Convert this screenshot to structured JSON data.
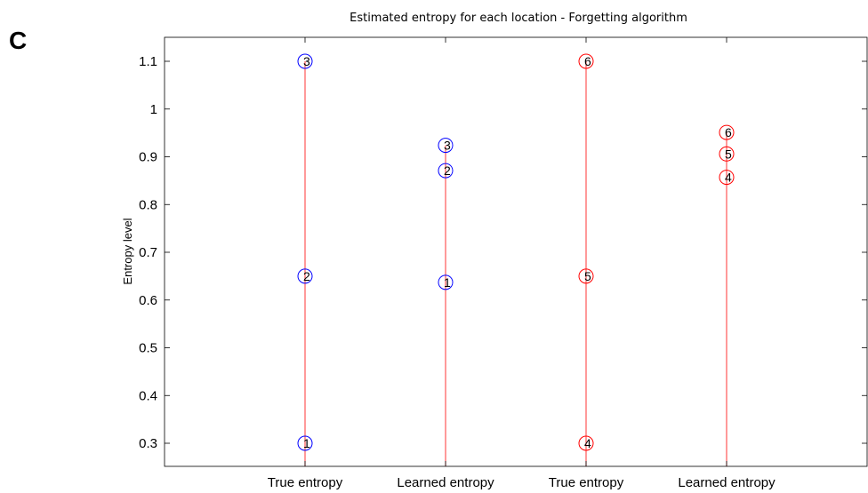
{
  "panel_letter": "C",
  "chart_data": {
    "type": "scatter",
    "title": "Estimated entropy for each location - Forgetting algorithm",
    "xlabel": "",
    "ylabel": "Entropy level",
    "categories": [
      "True entropy",
      "Learned entropy",
      "True entropy",
      "Learned entropy"
    ],
    "ylim": [
      0.25,
      1.15
    ],
    "yticks": [
      0.3,
      0.4,
      0.5,
      0.6,
      0.7,
      0.8,
      0.9,
      1,
      1.1
    ],
    "series": [
      {
        "color": "#0000ff",
        "points": [
          {
            "category": 0,
            "value": 0.3,
            "label": "1"
          },
          {
            "category": 0,
            "value": 0.65,
            "label": "2"
          },
          {
            "category": 0,
            "value": 1.1,
            "label": "3"
          },
          {
            "category": 1,
            "value": 0.637,
            "label": "1"
          },
          {
            "category": 1,
            "value": 0.871,
            "label": "2"
          },
          {
            "category": 1,
            "value": 0.924,
            "label": "3"
          }
        ]
      },
      {
        "color": "#ff0000",
        "points": [
          {
            "category": 2,
            "value": 0.3,
            "label": "4"
          },
          {
            "category": 2,
            "value": 0.65,
            "label": "5"
          },
          {
            "category": 2,
            "value": 1.1,
            "label": "6"
          },
          {
            "category": 3,
            "value": 0.857,
            "label": "4"
          },
          {
            "category": 3,
            "value": 0.906,
            "label": "5"
          },
          {
            "category": 3,
            "value": 0.951,
            "label": "6"
          }
        ]
      }
    ],
    "stem_color": "#ff0000",
    "grid": false
  }
}
